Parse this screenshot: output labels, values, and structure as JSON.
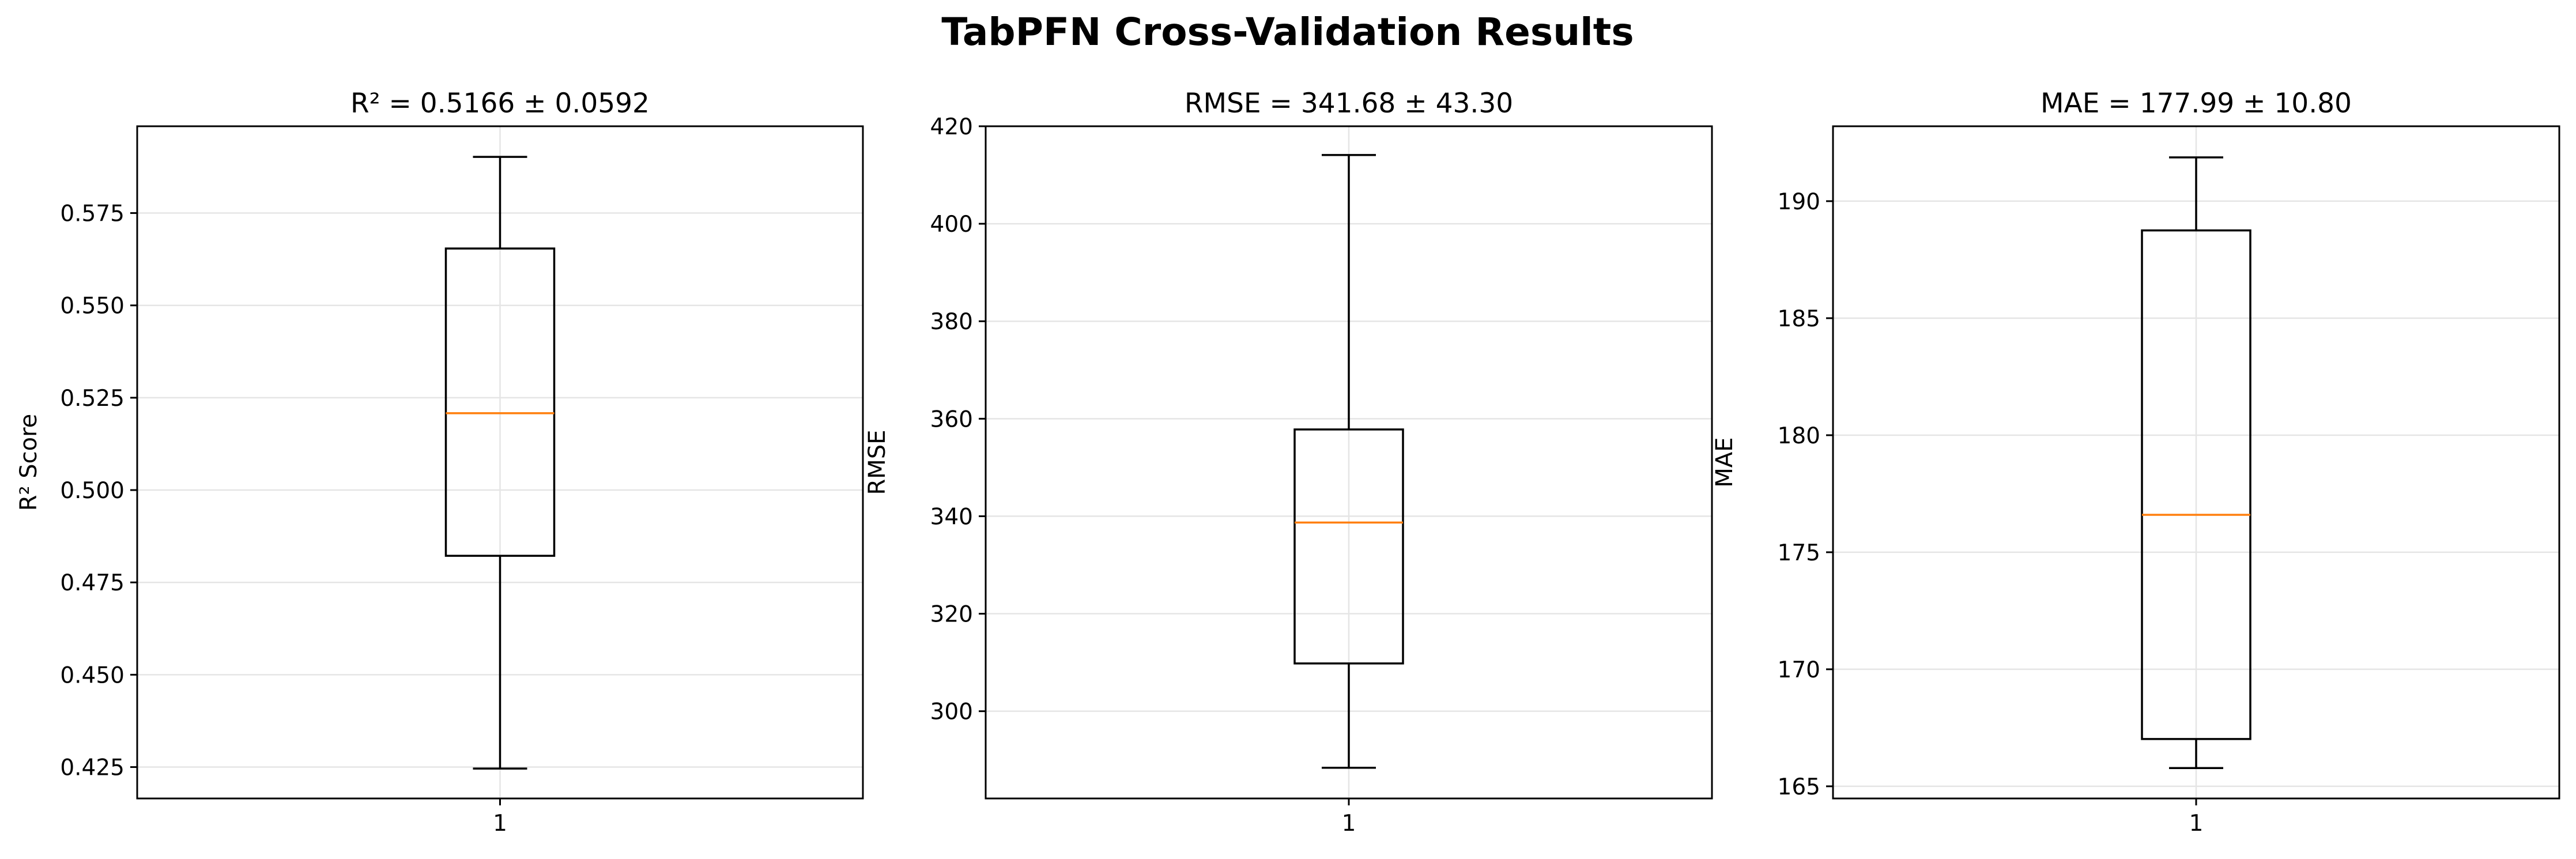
{
  "suptitle": "TabPFN Cross-Validation Results",
  "colors": {
    "box": "#000000",
    "median": "#ff7f0e",
    "grid": "#e5e5e5",
    "background": "#ffffff"
  },
  "chart_data": [
    {
      "type": "box",
      "title": "R² = 0.5166 ± 0.0592",
      "xlabel": "",
      "ylabel": "R² Score",
      "categories": [
        "1"
      ],
      "box": {
        "whisker_low": 0.4246,
        "q1": 0.4822,
        "median": 0.5208,
        "q3": 0.5654,
        "whisker_high": 0.5902
      },
      "ylim": [
        0.4165,
        0.5985
      ],
      "yticks": [
        0.425,
        0.45,
        0.475,
        0.5,
        0.525,
        0.55,
        0.575
      ],
      "ytick_labels": [
        "0.425",
        "0.450",
        "0.475",
        "0.500",
        "0.525",
        "0.550",
        "0.575"
      ],
      "grid": true
    },
    {
      "type": "box",
      "title": "RMSE = 341.68 ± 43.30",
      "xlabel": "",
      "ylabel": "RMSE",
      "categories": [
        "1"
      ],
      "box": {
        "whisker_low": 288.4,
        "q1": 309.8,
        "median": 338.7,
        "q3": 357.8,
        "whisker_high": 414.1
      },
      "ylim": [
        282.1,
        420.0
      ],
      "yticks": [
        300,
        320,
        340,
        360,
        380,
        400,
        420
      ],
      "ytick_labels": [
        "300",
        "320",
        "340",
        "360",
        "380",
        "400",
        "420"
      ],
      "grid": true
    },
    {
      "type": "box",
      "title": "MAE = 177.99 ± 10.80",
      "xlabel": "",
      "ylabel": "MAE",
      "categories": [
        "1"
      ],
      "box": {
        "whisker_low": 165.78,
        "q1": 167.02,
        "median": 176.6,
        "q3": 188.75,
        "whisker_high": 191.87
      },
      "ylim": [
        164.48,
        193.2
      ],
      "yticks": [
        165,
        170,
        175,
        180,
        185,
        190
      ],
      "ytick_labels": [
        "165",
        "170",
        "175",
        "180",
        "185",
        "190"
      ],
      "grid": true
    }
  ]
}
